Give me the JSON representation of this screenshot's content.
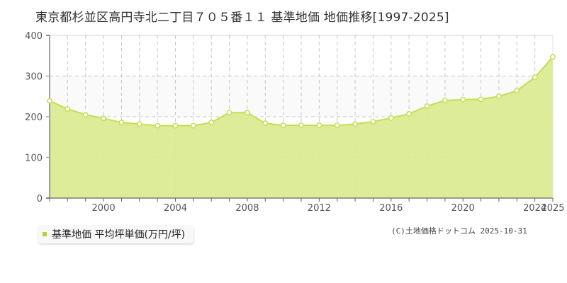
{
  "title": "東京都杉並区高円寺北二丁目７０５番１１ 基準地価 地価推移[1997-2025]",
  "legend": {
    "label": "基準地価 平均坪単価(万円/坪)",
    "color": "#b5d334"
  },
  "copyright": "(C)土地価格ドットコム 2025-10-31",
  "colors": {
    "fill": "#dbeb92",
    "line": "#c3df52",
    "marker_fill": "#ffffff",
    "marker_stroke": "#c3df52",
    "band": "#fafafa",
    "grid": "#c8c8c8",
    "axis": "#666666"
  },
  "chart_data": {
    "type": "area",
    "title": "東京都杉並区高円寺北二丁目７０５番１１ 基準地価 地価推移[1997-2025]",
    "xlabel": "",
    "ylabel": "",
    "ylim": [
      0,
      400
    ],
    "yticks": [
      0,
      100,
      200,
      300,
      400
    ],
    "xticks": [
      2000,
      2004,
      2008,
      2012,
      2016,
      2020,
      2024,
      2025
    ],
    "grid": true,
    "legend_position": "bottom-left",
    "x": [
      1997,
      1998,
      1999,
      2000,
      2001,
      2002,
      2003,
      2004,
      2005,
      2006,
      2007,
      2008,
      2009,
      2010,
      2011,
      2012,
      2013,
      2014,
      2015,
      2016,
      2017,
      2018,
      2019,
      2020,
      2021,
      2022,
      2023,
      2024,
      2025
    ],
    "series": [
      {
        "name": "基準地価 平均坪単価(万円/坪)",
        "values": [
          239,
          219,
          205,
          196,
          186,
          182,
          178,
          178,
          178,
          186,
          210,
          210,
          184,
          179,
          179,
          179,
          179,
          182,
          188,
          197,
          207,
          226,
          240,
          242,
          243,
          250,
          264,
          297,
          347
        ]
      }
    ]
  }
}
